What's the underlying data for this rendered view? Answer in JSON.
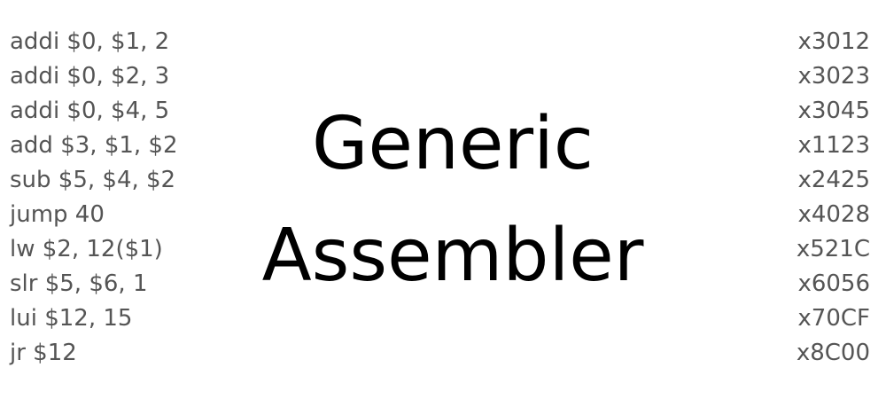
{
  "title": {
    "line1": "Generic",
    "line2": "Assembler"
  },
  "instructions": [
    "addi $0, $1, 2",
    "addi $0, $2, 3",
    "addi $0, $4, 5",
    "add $3, $1, $2",
    "sub $5, $4, $2",
    "jump 40",
    "lw $2, 12($1)",
    "slr $5, $6, 1",
    "lui $12, 15",
    "jr $12"
  ],
  "machine_codes": [
    "x3012",
    "x3023",
    "x3045",
    "x1123",
    "x2425",
    "x4028",
    "x521C",
    "x6056",
    "x70CF",
    "x8C00"
  ],
  "colors": {
    "list_text": "#555555",
    "title_text": "#000000",
    "background": "#ffffff"
  }
}
